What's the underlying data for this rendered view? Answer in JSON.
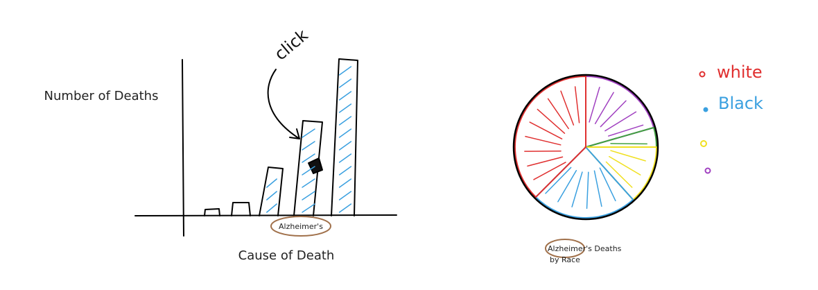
{
  "bar_sketch": {
    "y_axis_label": "Number of Deaths",
    "x_axis_label": "Cause of Death",
    "highlighted_category": "Alzheimer's",
    "annotation": "click"
  },
  "pie_sketch": {
    "title_lines": [
      "Alzheimer's Deaths",
      "by Race"
    ],
    "legend": [
      "white",
      "Black"
    ]
  }
}
